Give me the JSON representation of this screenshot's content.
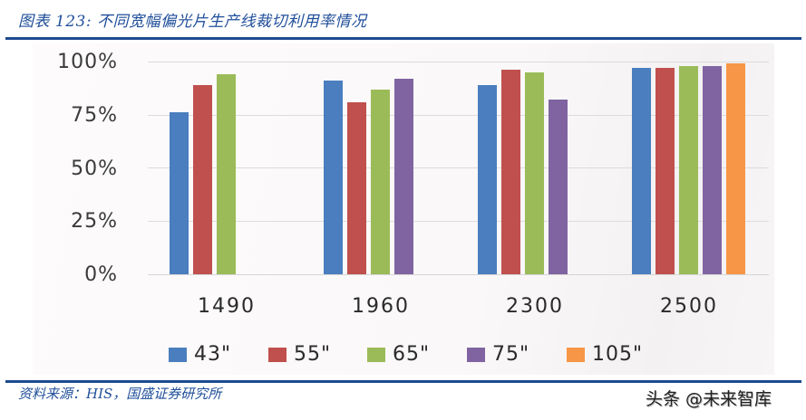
{
  "header": {
    "title": "图表 123:  不同宽幅偏光片生产线裁切利用率情况"
  },
  "footer": {
    "source": "资料来源：HIS，国盛证券研究所",
    "watermark": "头条 @未来智库"
  },
  "colors": {
    "rule": "#1c4a8f",
    "title_text": "#1f4e9a",
    "series": [
      "#4a7ebf",
      "#c0504d",
      "#9bbb59",
      "#8064a2",
      "#f79646"
    ]
  },
  "chart_data": {
    "type": "bar",
    "title": "不同宽幅偏光片生产线裁切利用率情况",
    "xlabel": "",
    "ylabel": "",
    "categories": [
      "1490",
      "1960",
      "2300",
      "2500"
    ],
    "series": [
      {
        "name": "43\"",
        "color": "#4a7ebf",
        "values": [
          76,
          91,
          89,
          97
        ]
      },
      {
        "name": "55\"",
        "color": "#c0504d",
        "values": [
          89,
          81,
          96,
          97
        ]
      },
      {
        "name": "65\"",
        "color": "#9bbb59",
        "values": [
          94,
          87,
          95,
          98
        ]
      },
      {
        "name": "75\"",
        "color": "#8064a2",
        "values": [
          null,
          92,
          82,
          98
        ]
      },
      {
        "name": "105\"",
        "color": "#f79646",
        "values": [
          null,
          null,
          null,
          99
        ]
      }
    ],
    "yticks": [
      "0%",
      "25%",
      "50%",
      "75%",
      "100%"
    ],
    "ylim": [
      0,
      100
    ],
    "grid": true,
    "legend_position": "bottom"
  },
  "axis": {
    "y_labels": [
      "100%",
      "75%",
      "50%",
      "25%",
      "0%"
    ],
    "x_labels": [
      "1490",
      "1960",
      "2300",
      "2500"
    ]
  },
  "legend": [
    {
      "label": "43\"",
      "color": "#4a7ebf"
    },
    {
      "label": "55\"",
      "color": "#c0504d"
    },
    {
      "label": "65\"",
      "color": "#9bbb59"
    },
    {
      "label": "75\"",
      "color": "#8064a2"
    },
    {
      "label": "105\"",
      "color": "#f79646"
    }
  ]
}
